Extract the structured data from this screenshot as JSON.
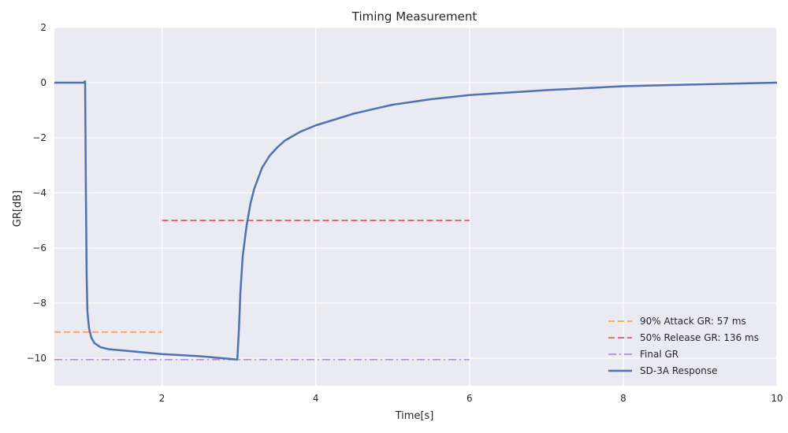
{
  "chart_data": {
    "type": "line",
    "title": "Timing Measurement",
    "xlabel": "Time[s]",
    "ylabel": "GR[dB]",
    "xlim": [
      0.6,
      10
    ],
    "ylim": [
      -11,
      2
    ],
    "xticks": [
      2,
      4,
      6,
      8,
      10
    ],
    "yticks": [
      2,
      0,
      -2,
      -4,
      -6,
      -8,
      -10
    ],
    "xtick_labels": [
      "2",
      "4",
      "6",
      "8",
      "10"
    ],
    "ytick_labels": [
      "2",
      "0",
      "−2",
      "−4",
      "−6",
      "−8",
      "−10"
    ],
    "grid": true,
    "legend_position": "lower-right",
    "series": [
      {
        "name": "90% Attack GR: 57 ms",
        "style": "dashed",
        "color": "#ff9f4a",
        "x": [
          0.6,
          2.0
        ],
        "y": [
          -9.05,
          -9.05
        ]
      },
      {
        "name": "50% Release GR: 136 ms",
        "style": "dashed",
        "color": "#e05a5a",
        "x": [
          2.0,
          6.0
        ],
        "y": [
          -5.0,
          -5.0
        ]
      },
      {
        "name": "Final GR",
        "style": "dashdot",
        "color": "#b08fd6",
        "x": [
          0.6,
          6.0
        ],
        "y": [
          -10.05,
          -10.05
        ]
      },
      {
        "name": "SD-3A Response",
        "style": "solid",
        "color": "#4c72b0",
        "x": [
          0.6,
          0.9,
          0.98,
          1.0,
          1.01,
          1.02,
          1.03,
          1.05,
          1.08,
          1.12,
          1.2,
          1.3,
          1.5,
          2.0,
          2.5,
          2.98,
          3.0,
          3.02,
          3.05,
          3.1,
          3.15,
          3.2,
          3.3,
          3.4,
          3.5,
          3.6,
          3.8,
          4.0,
          4.5,
          5.0,
          5.5,
          6.0,
          7.0,
          8.0,
          9.0,
          10.0
        ],
        "y": [
          0.0,
          0.0,
          0.0,
          0.05,
          -4.0,
          -7.0,
          -8.3,
          -8.9,
          -9.25,
          -9.45,
          -9.6,
          -9.67,
          -9.72,
          -9.85,
          -9.93,
          -10.05,
          -9.0,
          -7.6,
          -6.3,
          -5.2,
          -4.4,
          -3.85,
          -3.1,
          -2.65,
          -2.35,
          -2.1,
          -1.78,
          -1.55,
          -1.12,
          -0.8,
          -0.6,
          -0.45,
          -0.27,
          -0.13,
          -0.06,
          0.0
        ]
      }
    ]
  }
}
